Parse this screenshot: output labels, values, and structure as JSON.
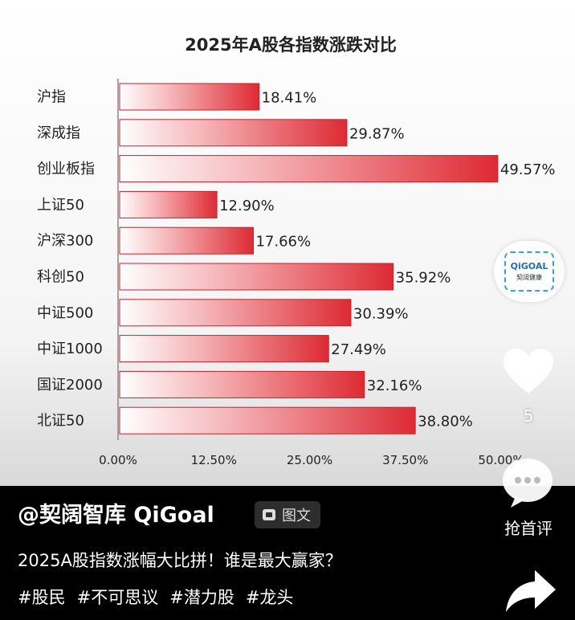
{
  "chart_data": {
    "type": "bar",
    "orientation": "horizontal",
    "title": "2025年A股各指数涨跌对比",
    "categories": [
      "沪指",
      "深成指",
      "创业板指",
      "上证50",
      "沪深300",
      "科创50",
      "中证500",
      "中证1000",
      "国证2000",
      "北证50"
    ],
    "values": [
      18.41,
      29.87,
      49.57,
      12.9,
      17.66,
      35.92,
      30.39,
      27.49,
      32.16,
      38.8
    ],
    "value_labels": [
      "18.41%",
      "29.87%",
      "49.57%",
      "12.90%",
      "17.66%",
      "35.92%",
      "30.39%",
      "27.49%",
      "32.16%",
      "38.80%"
    ],
    "xticks": [
      0,
      12.5,
      25,
      37.5,
      50
    ],
    "xtick_labels": [
      "0.00%",
      "12.50%",
      "25.00%",
      "37.50%",
      "50.00%"
    ],
    "xlim": [
      0,
      50
    ],
    "grid": false,
    "bar_color": "#e0313a"
  },
  "logo": {
    "text": "QiGOAL",
    "subtext": "契阔健康"
  },
  "actions": {
    "like_count": "5",
    "comment_label": "抢首评"
  },
  "post": {
    "author": "@契阔智库 QiGoal",
    "type_badge": "图文",
    "caption": "2025A股指数涨幅大比拼！谁是最大赢家？",
    "hashtags": [
      "#股民",
      "#不可思议",
      "#潜力股",
      "#龙头"
    ]
  }
}
